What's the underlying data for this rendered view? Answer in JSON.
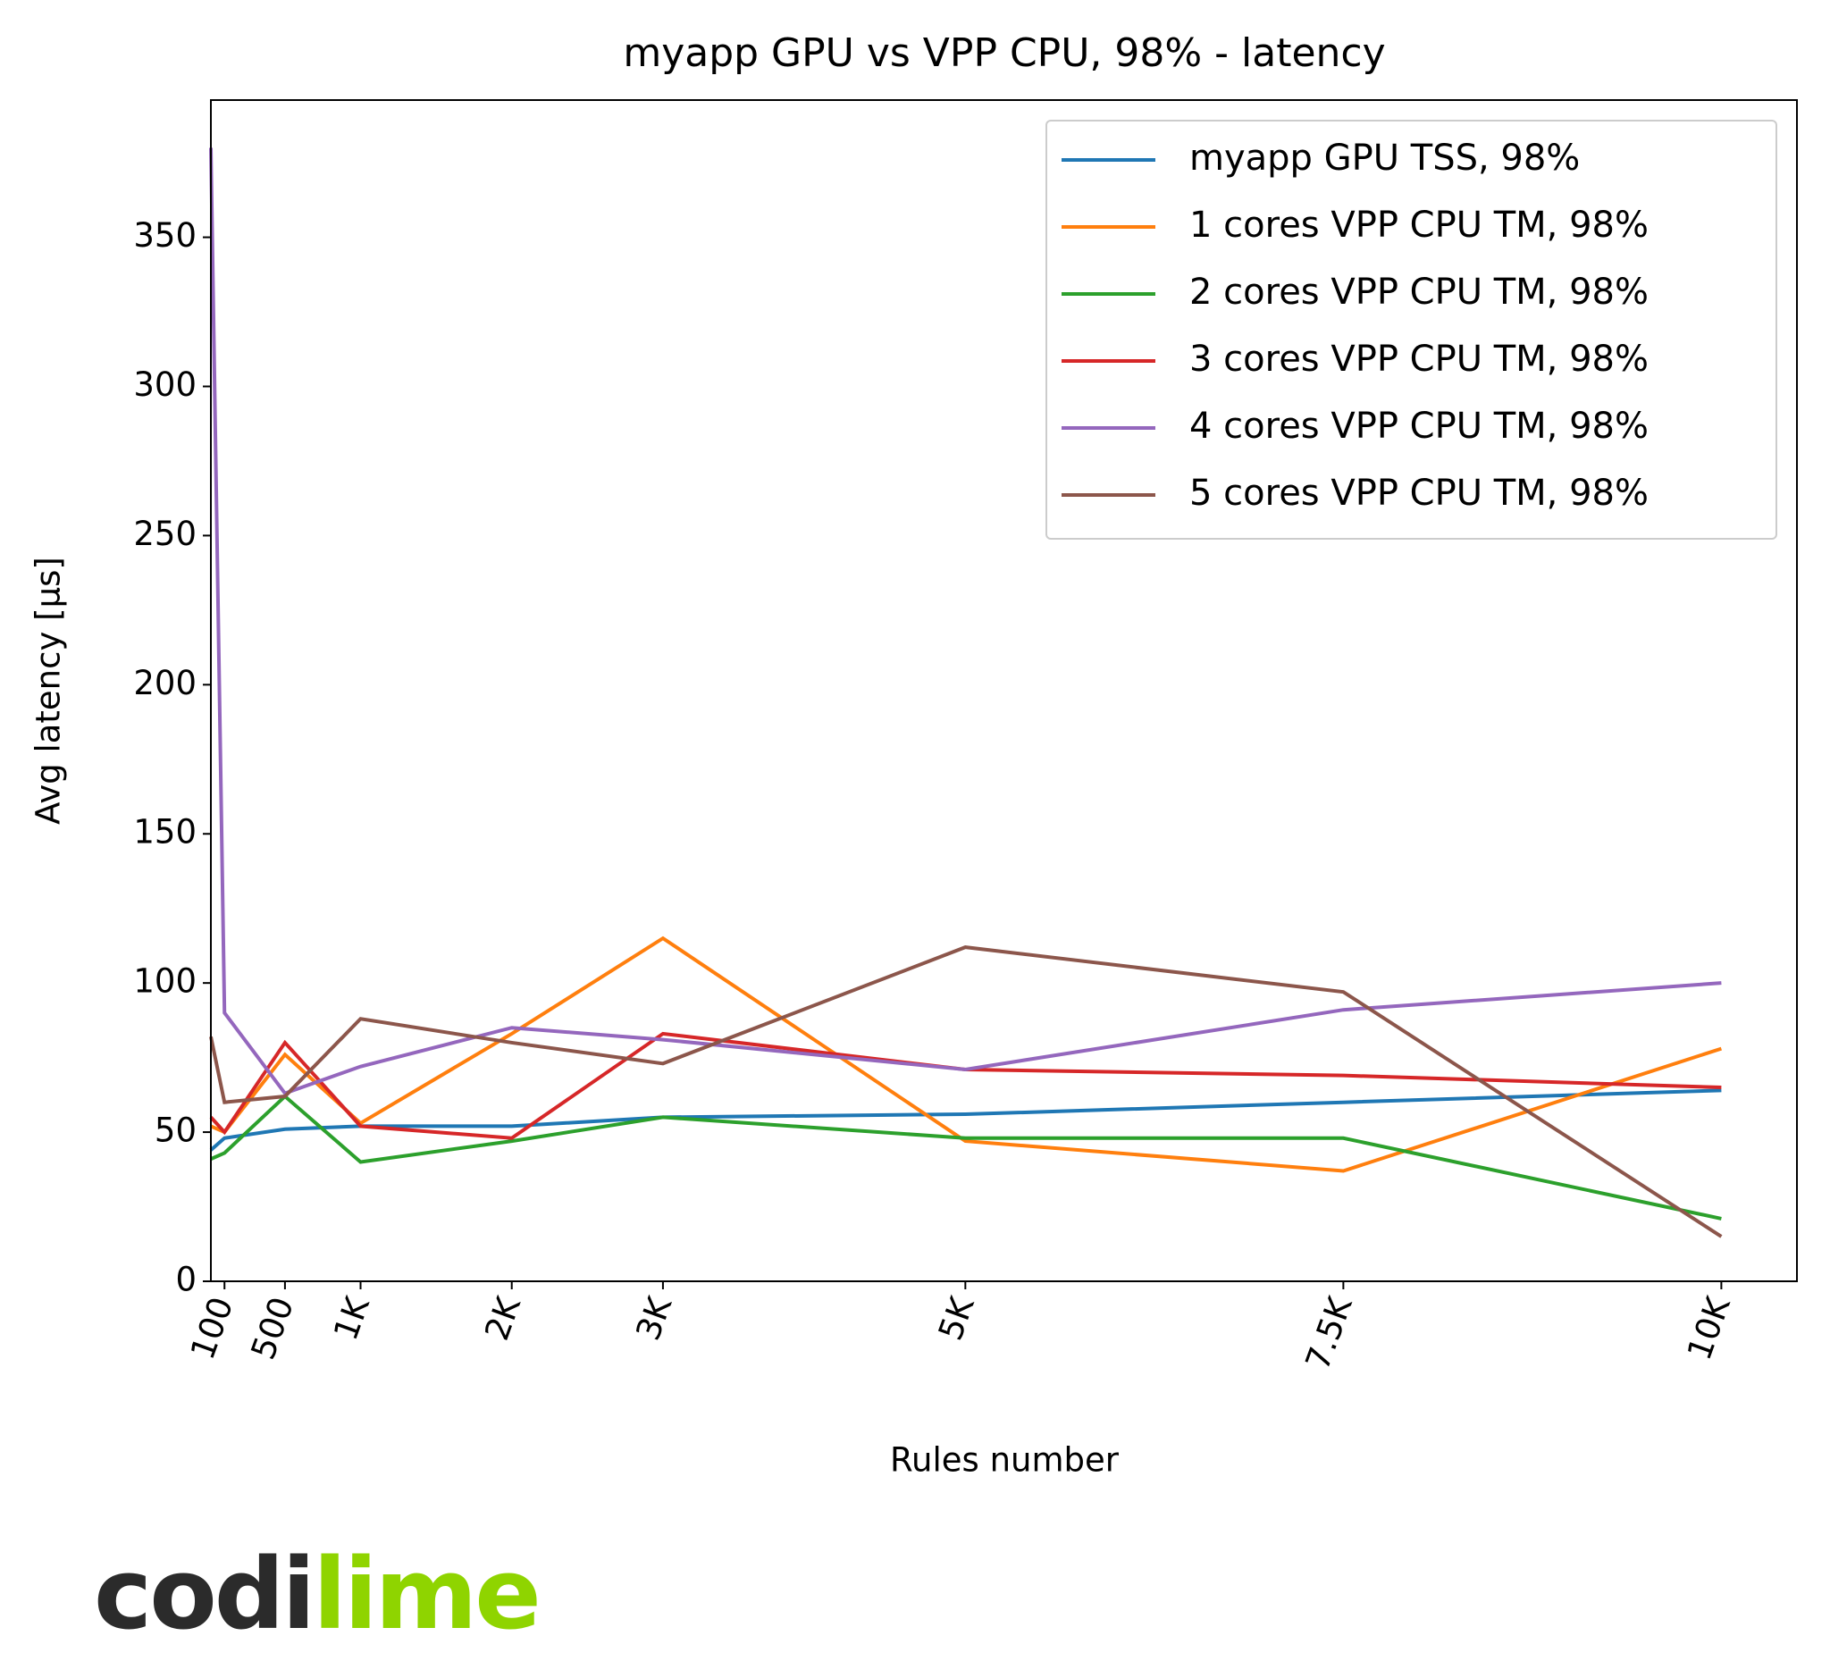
{
  "chart_data": {
    "type": "line",
    "title": "myapp GPU vs VPP CPU, 98% - latency",
    "x_label": "Rules number",
    "y_label": "Avg latency [μs]",
    "x": [
      10,
      100,
      500,
      1000,
      2000,
      3000,
      5000,
      7500,
      10000
    ],
    "xlim": [
      10,
      10500
    ],
    "xticks": [
      100,
      500,
      {
        "value": 1000,
        "label": "1K"
      },
      {
        "value": 2000,
        "label": "2K"
      },
      {
        "value": 3000,
        "label": "3K"
      },
      {
        "value": 5000,
        "label": "5K"
      },
      {
        "value": 7500,
        "label": "7.5K"
      },
      {
        "value": 10000,
        "label": "10K"
      }
    ],
    "ylim": [
      0,
      396
    ],
    "yticks": [
      0,
      50,
      100,
      150,
      200,
      250,
      300,
      350
    ],
    "legend": "upper right",
    "series": [
      {
        "name": "myapp GPU TSS, 98%",
        "color": "#1f77b4",
        "values": [
          44,
          48,
          51,
          52,
          52,
          55,
          56,
          60,
          64
        ]
      },
      {
        "name": "1 cores VPP CPU TM, 98%",
        "color": "#ff7f0e",
        "values": [
          52,
          50,
          76,
          53,
          83,
          115,
          47,
          37,
          78
        ]
      },
      {
        "name": "2 cores VPP CPU TM, 98%",
        "color": "#2ca02c",
        "values": [
          41,
          43,
          62,
          40,
          47,
          55,
          48,
          48,
          21
        ]
      },
      {
        "name": "3 cores VPP CPU TM, 98%",
        "color": "#d62728",
        "values": [
          55,
          50,
          80,
          52,
          48,
          83,
          71,
          69,
          65
        ]
      },
      {
        "name": "4 cores VPP CPU TM, 98%",
        "color": "#9467bd",
        "values": [
          380,
          90,
          63,
          72,
          85,
          81,
          71,
          91,
          100
        ]
      },
      {
        "name": "5 cores VPP CPU TM, 98%",
        "color": "#8c564b",
        "values": [
          82,
          60,
          62,
          88,
          80,
          73,
          112,
          97,
          15
        ]
      }
    ]
  },
  "logo": [
    "codi",
    "lime"
  ]
}
